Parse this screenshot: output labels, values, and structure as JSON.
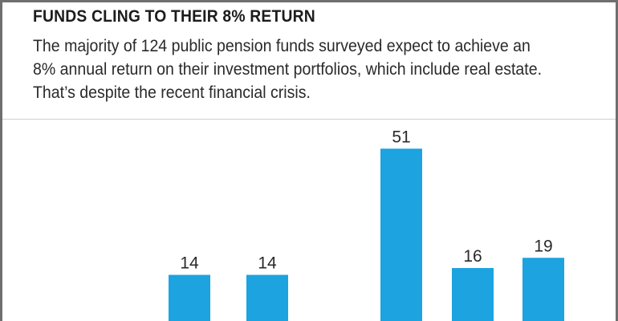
{
  "header": {
    "title": "FUNDS CLING TO THEIR 8% RETURN",
    "subtitle": "The majority of 124 public pension funds surveyed expect to achieve an 8% annual return on their investment portfolios, which include real estate. That’s despite the recent financial crisis."
  },
  "colors": {
    "bar": "#1ca3e0",
    "border": "#6f6f6f"
  },
  "chart_data": {
    "type": "bar",
    "title": "FUNDS CLING TO THEIR 8% RETURN",
    "subtitle": "The majority of 124 public pension funds surveyed expect to achieve an 8% annual return on their investment portfolios, which include real estate. That’s despite the recent financial crisis.",
    "values": [
      14,
      14,
      51,
      16,
      19
    ],
    "data_labels": [
      "14",
      "14",
      "51",
      "16",
      "19"
    ],
    "xlabel": "",
    "ylabel": "",
    "ylim": [
      0,
      60
    ],
    "grid": false,
    "legend": "none"
  }
}
